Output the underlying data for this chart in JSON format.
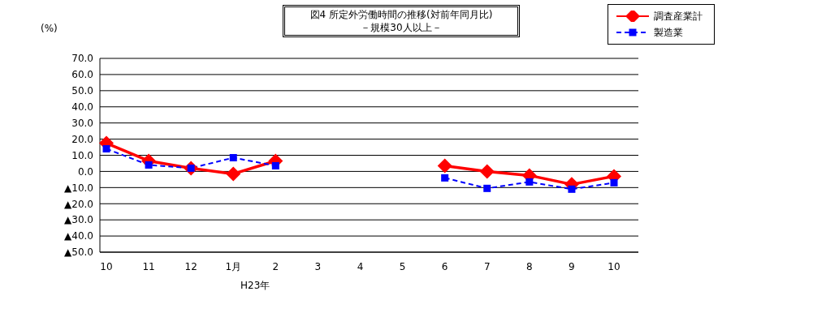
{
  "chart_data": {
    "type": "line",
    "title": "図4 所定外労働時間の推移(対前年同月比)",
    "subtitle": "－規模30人以上－",
    "ylabel": "(%)",
    "categories": [
      "10",
      "11",
      "12",
      "1月",
      "2",
      "3",
      "4",
      "5",
      "6",
      "7",
      "8",
      "9",
      "10"
    ],
    "series": [
      {
        "name": "調査産業計",
        "color": "#ff0000",
        "marker": "diamond",
        "line_style": "solid",
        "values": [
          17.5,
          6.5,
          2,
          -1.5,
          6.5,
          null,
          null,
          null,
          3.5,
          0,
          -2.5,
          -8,
          -3
        ]
      },
      {
        "name": "製造業",
        "color": "#0000ff",
        "marker": "square",
        "line_style": "dashed",
        "values": [
          14,
          4,
          2,
          8.5,
          3.5,
          null,
          null,
          null,
          -4,
          -10.5,
          -6.5,
          -11,
          -7
        ]
      }
    ],
    "annotations": [
      "H23年"
    ],
    "ylim": [
      -50,
      70
    ],
    "yticks": [
      {
        "value": -50,
        "label": "▲50.0"
      },
      {
        "value": -40,
        "label": "▲40.0"
      },
      {
        "value": -30,
        "label": "▲30.0"
      },
      {
        "value": -20,
        "label": "▲20.0"
      },
      {
        "value": -10,
        "label": "▲10.0"
      },
      {
        "value": 0,
        "label": "0.0"
      },
      {
        "value": 10,
        "label": "10.0"
      },
      {
        "value": 20,
        "label": "20.0"
      },
      {
        "value": 30,
        "label": "30.0"
      },
      {
        "value": 40,
        "label": "40.0"
      },
      {
        "value": 50,
        "label": "50.0"
      },
      {
        "value": 60,
        "label": "60.0"
      },
      {
        "value": 70,
        "label": "70.0"
      }
    ],
    "grid": "y",
    "legend": "top right"
  }
}
